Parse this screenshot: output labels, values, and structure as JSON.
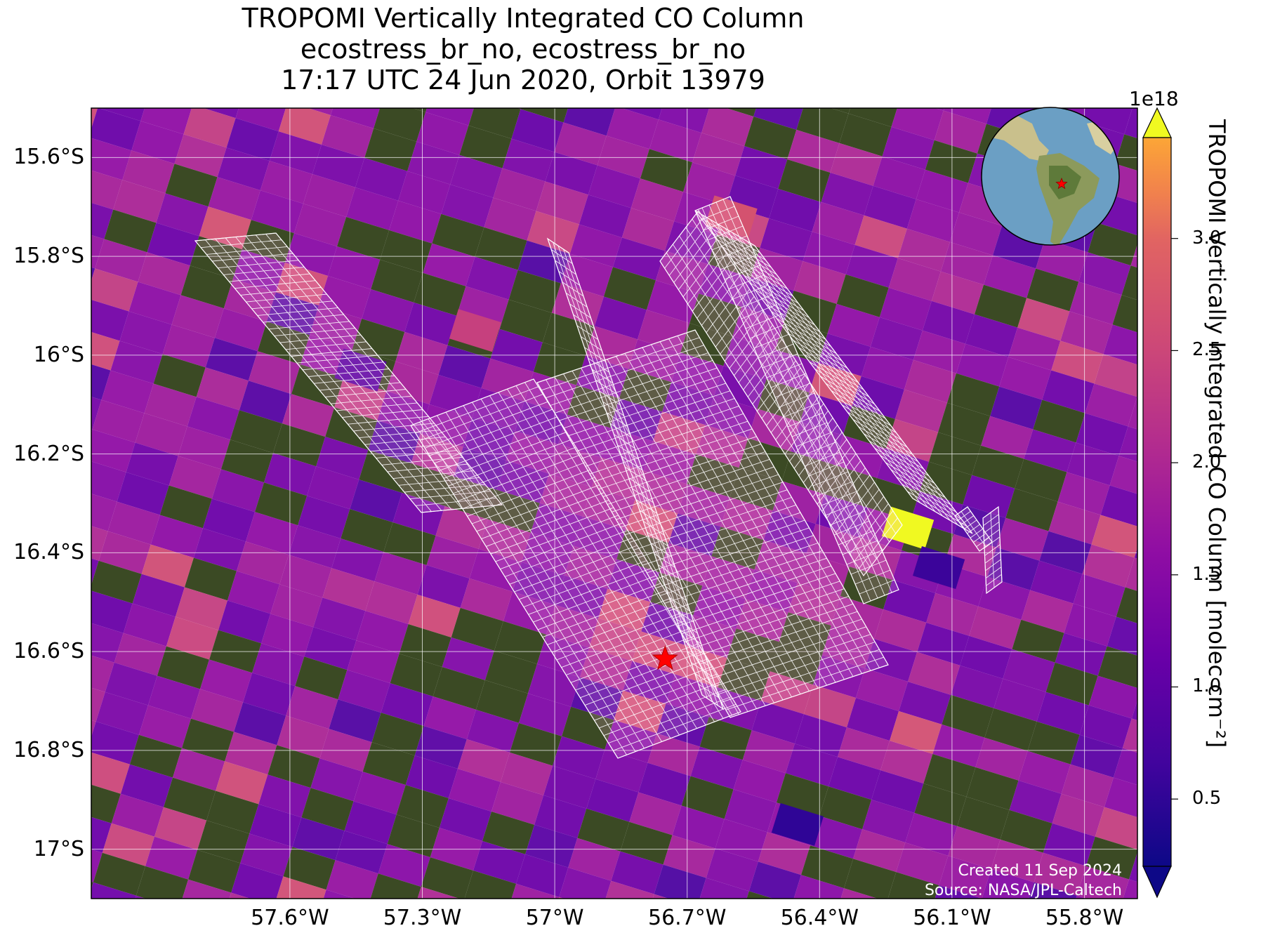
{
  "title": {
    "line1": "TROPOMI Vertically Integrated CO Column",
    "line2": "ecostress_br_no, ecostress_br_no",
    "line3": "17:17 UTC 24 Jun 2020, Orbit 13979"
  },
  "map": {
    "lon_range": [
      -58.05,
      -55.68
    ],
    "lat_range": [
      -17.1,
      -15.5
    ],
    "lat_ticks": [
      "15.6°S",
      "15.8°S",
      "16°S",
      "16.2°S",
      "16.4°S",
      "16.6°S",
      "16.8°S",
      "17°S"
    ],
    "lat_values": [
      -15.6,
      -15.8,
      -16.0,
      -16.2,
      -16.4,
      -16.6,
      -16.8,
      -17.0
    ],
    "lon_ticks": [
      "57.6°W",
      "57.3°W",
      "57°W",
      "56.7°W",
      "56.4°W",
      "56.1°W",
      "55.8°W"
    ],
    "lon_values": [
      -57.6,
      -57.3,
      -57.0,
      -56.7,
      -56.4,
      -56.1,
      -55.8
    ],
    "gridlines": true,
    "site_marker": {
      "lon": -56.75,
      "lat": -16.615,
      "symbol": "star",
      "color": "#ff0000"
    },
    "highlight_pixels": [
      {
        "lon": -56.2,
        "lat": -16.35,
        "value": 3.3e+18
      },
      {
        "lon": -56.6,
        "lat": -15.72,
        "value": 2.7e+18
      },
      {
        "lon": -57.18,
        "lat": -15.95,
        "value": 2.4e+18
      },
      {
        "lon": -56.45,
        "lat": -16.95,
        "value": 5e+17
      },
      {
        "lon": -56.13,
        "lat": -16.43,
        "value": 6e+17
      },
      {
        "lon": -57.44,
        "lat": -16.03,
        "value": 9e+17
      }
    ],
    "inset_globe": {
      "marker_color": "#ff0000",
      "marker_symbol": "star"
    }
  },
  "colorbar": {
    "colormap": "plasma",
    "range": [
      0.2,
      3.45
    ],
    "extend": "both",
    "exponent": "1e18",
    "ticks": [
      0.5,
      1.0,
      1.5,
      2.0,
      2.5,
      3.0
    ],
    "tick_labels": [
      "0.5",
      "1.0",
      "1.5",
      "2.0",
      "2.5",
      "3.0"
    ],
    "label": "TROPOMI Vertically Integrated CO Column [molec cm⁻²]"
  },
  "credit": {
    "line1": "Created 11 Sep 2024",
    "line2": "Source: NASA/JPL-Caltech"
  }
}
